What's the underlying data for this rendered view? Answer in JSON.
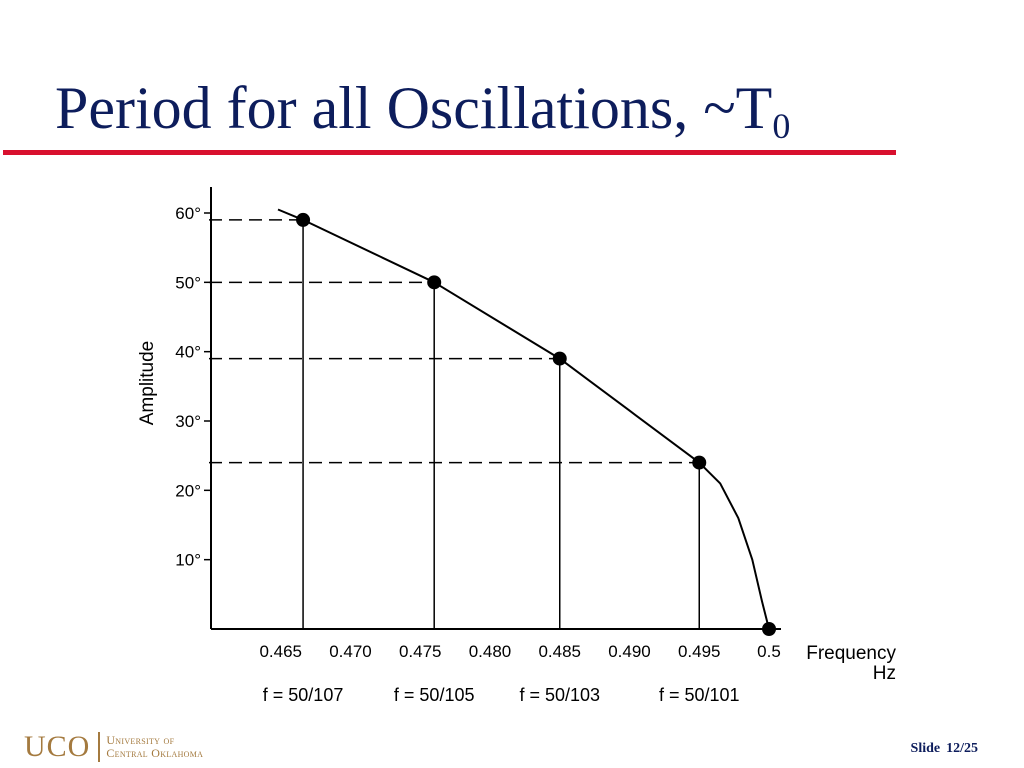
{
  "slide": {
    "title_main": "Period for all Oscillations,  ~T",
    "title_subscript": "0",
    "accent_color": "#d8102e",
    "title_color": "#0d1d5c"
  },
  "chart_data": {
    "type": "line",
    "title": "",
    "xlabel": [
      "Frequency",
      "Hz"
    ],
    "ylabel": "Amplitude",
    "xlim": [
      0.46,
      0.5
    ],
    "ylim": [
      0,
      60
    ],
    "x_ticks": [
      "0.465",
      "0.470",
      "0.475",
      "0.480",
      "0.485",
      "0.490",
      "0.495",
      "0.5"
    ],
    "y_ticks": [
      "10°",
      "20°",
      "30°",
      "40°",
      "50°",
      "60°"
    ],
    "grid": false,
    "series": [
      {
        "curve": [
          [
            0.4648,
            60.5
          ],
          [
            0.4666,
            59
          ],
          [
            0.476,
            50
          ],
          [
            0.485,
            39
          ],
          [
            0.49,
            31.5
          ],
          [
            0.495,
            24
          ],
          [
            0.4965,
            21
          ],
          [
            0.4978,
            16
          ],
          [
            0.4988,
            10
          ],
          [
            0.4995,
            4
          ],
          [
            0.5,
            0
          ]
        ],
        "points": [
          [
            0.4666,
            59
          ],
          [
            0.476,
            50
          ],
          [
            0.485,
            39
          ],
          [
            0.495,
            24
          ],
          [
            0.5,
            0
          ]
        ]
      }
    ],
    "annotations": [
      {
        "x": 0.4666,
        "text": "f = 50/107"
      },
      {
        "x": 0.476,
        "text": "f = 50/105"
      },
      {
        "x": 0.485,
        "text": "f = 50/103"
      },
      {
        "x": 0.495,
        "text": "f = 50/101"
      }
    ],
    "reference_lines": "dashed horizontal and solid vertical guide lines from each data point to the axes"
  },
  "footer": {
    "logo_mark": "UCO",
    "logo_line1": "University of",
    "logo_line2": "Central Oklahoma",
    "slide_label": "Slide",
    "slide_number": "12/25"
  }
}
